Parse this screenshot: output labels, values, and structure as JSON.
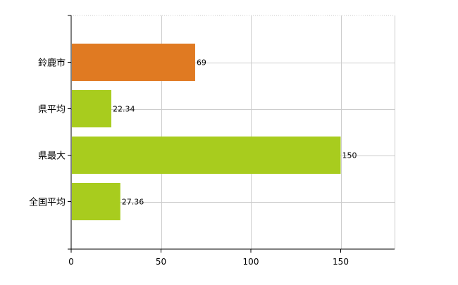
{
  "chart_data": {
    "type": "bar",
    "orientation": "horizontal",
    "categories": [
      "鈴鹿市",
      "県平均",
      "県最大",
      "全国平均"
    ],
    "values": [
      69,
      22.34,
      150,
      27.36
    ],
    "value_labels": [
      "69",
      "22.34",
      "150",
      "27.36"
    ],
    "bar_colors": [
      "#e07a22",
      "#a8cc1e",
      "#a8cc1e",
      "#a8cc1e"
    ],
    "xlim": [
      0,
      180
    ],
    "xticks": [
      0,
      50,
      100,
      150
    ],
    "xtick_labels": [
      "0",
      "50",
      "100",
      "150"
    ],
    "grid": true,
    "title": "",
    "xlabel": "",
    "ylabel": ""
  }
}
